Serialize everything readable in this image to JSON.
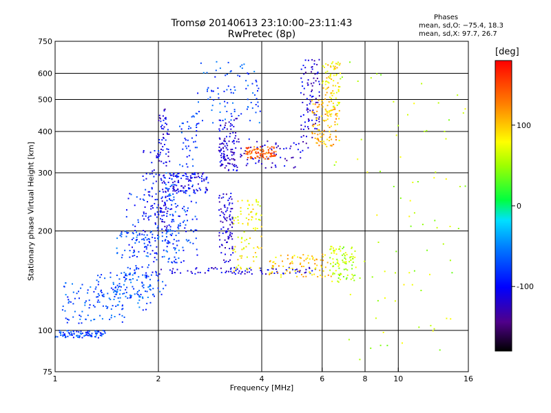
{
  "chart_data": {
    "type": "scatter",
    "title": "Tromsø 20140613 23:10:00–23:11:43",
    "subtitle": "RwPretec (8p)",
    "stats": {
      "title": "Phases",
      "line_o": "mean, sd,O:  −75.4, 18.3",
      "line_x": "mean, sd,X:  97.7, 26.7"
    },
    "xlabel": "Frequency [MHz]",
    "ylabel": "Stationary phase Virtual Height [km]",
    "x_scale": "log",
    "y_scale": "log",
    "xlim": [
      1,
      16
    ],
    "ylim": [
      75,
      750
    ],
    "x_ticks": [
      1,
      2,
      4,
      6,
      8,
      10,
      16
    ],
    "x_tick_labels": [
      "1",
      "2",
      "4",
      "6",
      "8",
      "10",
      "16"
    ],
    "y_ticks": [
      75,
      100,
      200,
      300,
      400,
      500,
      600,
      750
    ],
    "y_tick_labels": [
      "75",
      "100",
      "200",
      "300",
      "400",
      "500",
      "600",
      "750"
    ],
    "x_grid": [
      2,
      4,
      6,
      8,
      10
    ],
    "y_grid": [
      100,
      200,
      300,
      400,
      500,
      600
    ],
    "colorbar": {
      "unit_label": "[deg]",
      "range": [
        -180,
        180
      ],
      "ticks": [
        100,
        0,
        -100
      ],
      "tick_labels": [
        "100",
        "0",
        "-100"
      ]
    },
    "point_color_value": "phase (deg)",
    "traces": [
      {
        "freq": [
          1.0,
          1.4
        ],
        "height": [
          95,
          100
        ],
        "phase": -75
      },
      {
        "freq": [
          1.05,
          1.6
        ],
        "height": [
          105,
          140
        ],
        "phase": -70
      },
      {
        "freq": [
          1.3,
          1.9
        ],
        "height": [
          115,
          150
        ],
        "phase": -72
      },
      {
        "freq": [
          1.5,
          2.1
        ],
        "height": [
          125,
          200
        ],
        "phase": -70
      },
      {
        "freq": [
          1.6,
          2.0
        ],
        "height": [
          145,
          260
        ],
        "phase": -85
      },
      {
        "freq": [
          1.8,
          2.2
        ],
        "height": [
          180,
          350
        ],
        "phase": -95
      },
      {
        "freq": [
          2.0,
          2.15
        ],
        "height": [
          200,
          470
        ],
        "phase": -110
      },
      {
        "freq": [
          2.1,
          2.3
        ],
        "height": [
          160,
          300
        ],
        "phase": -72
      },
      {
        "freq": [
          2.3,
          2.6
        ],
        "height": [
          160,
          460
        ],
        "phase": -80
      },
      {
        "freq": [
          2.2,
          2.8
        ],
        "height": [
          260,
          300
        ],
        "phase": -110
      },
      {
        "freq": [
          2.0,
          5.8
        ],
        "height": [
          148,
          155
        ],
        "phase": -110
      },
      {
        "freq": [
          3.0,
          5.5
        ],
        "height": [
          310,
          380
        ],
        "phase": -115
      },
      {
        "freq": [
          3.0,
          3.4
        ],
        "height": [
          300,
          440
        ],
        "phase": -115
      },
      {
        "freq": [
          2.6,
          4.0
        ],
        "height": [
          420,
          650
        ],
        "phase": -72
      },
      {
        "freq": [
          3.0,
          3.3
        ],
        "height": [
          160,
          260
        ],
        "phase": -115
      },
      {
        "freq": [
          3.3,
          4.0
        ],
        "height": [
          150,
          250
        ],
        "phase": 80
      },
      {
        "freq": [
          3.6,
          4.4
        ],
        "height": [
          330,
          360
        ],
        "phase": 140
      },
      {
        "freq": [
          5.2,
          5.9
        ],
        "height": [
          380,
          660
        ],
        "phase": -115
      },
      {
        "freq": [
          5.6,
          6.6
        ],
        "height": [
          360,
          500
        ],
        "phase": 110
      },
      {
        "freq": [
          6.0,
          6.8
        ],
        "height": [
          430,
          650
        ],
        "phase": 90
      },
      {
        "freq": [
          4.2,
          6.5
        ],
        "height": [
          145,
          170
        ],
        "phase": 100
      },
      {
        "freq": [
          6.3,
          7.5
        ],
        "height": [
          140,
          180
        ],
        "phase": 60
      },
      {
        "freq": [
          6.5,
          16.0
        ],
        "height": [
          80,
          650
        ],
        "phase": 60
      }
    ]
  }
}
